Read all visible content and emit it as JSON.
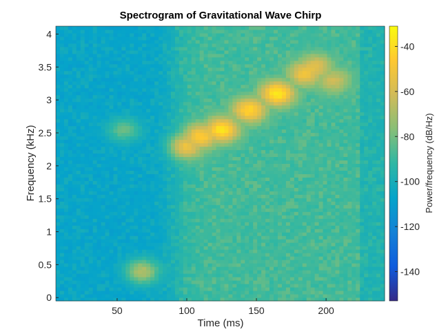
{
  "chart_data": {
    "type": "heatmap",
    "title": "Spectrogram of Gravitational Wave Chirp",
    "xlabel": "Time (ms)",
    "ylabel": "Frequency (kHz)",
    "colorbar_label": "Power/frequency (dB/Hz)",
    "xlim": [
      6,
      242
    ],
    "ylim": [
      -0.05,
      4.12
    ],
    "clim": [
      -153,
      -31
    ],
    "xticks": [
      50,
      100,
      150,
      200
    ],
    "yticks": [
      0,
      0.5,
      1,
      1.5,
      2,
      2.5,
      3,
      3.5,
      4
    ],
    "cticks": [
      -40,
      -60,
      -80,
      -100,
      -120,
      -140
    ],
    "colormap": "parula",
    "background_power_db": {
      "t_lt_90ms": -108,
      "t_gt_90ms": -90
    },
    "chirp_track": [
      {
        "time": 100,
        "freq": 2.3,
        "power": -52
      },
      {
        "time": 110,
        "freq": 2.45,
        "power": -45
      },
      {
        "time": 125,
        "freq": 2.55,
        "power": -38
      },
      {
        "time": 145,
        "freq": 2.85,
        "power": -42
      },
      {
        "time": 165,
        "freq": 3.1,
        "power": -36
      },
      {
        "time": 185,
        "freq": 3.4,
        "power": -50
      },
      {
        "time": 192,
        "freq": 3.5,
        "power": -55
      },
      {
        "time": 205,
        "freq": 3.3,
        "power": -62
      }
    ],
    "features": [
      {
        "time": 68,
        "freq": 0.4,
        "power": -68
      },
      {
        "time": 55,
        "freq": 2.55,
        "power": -82
      }
    ]
  }
}
